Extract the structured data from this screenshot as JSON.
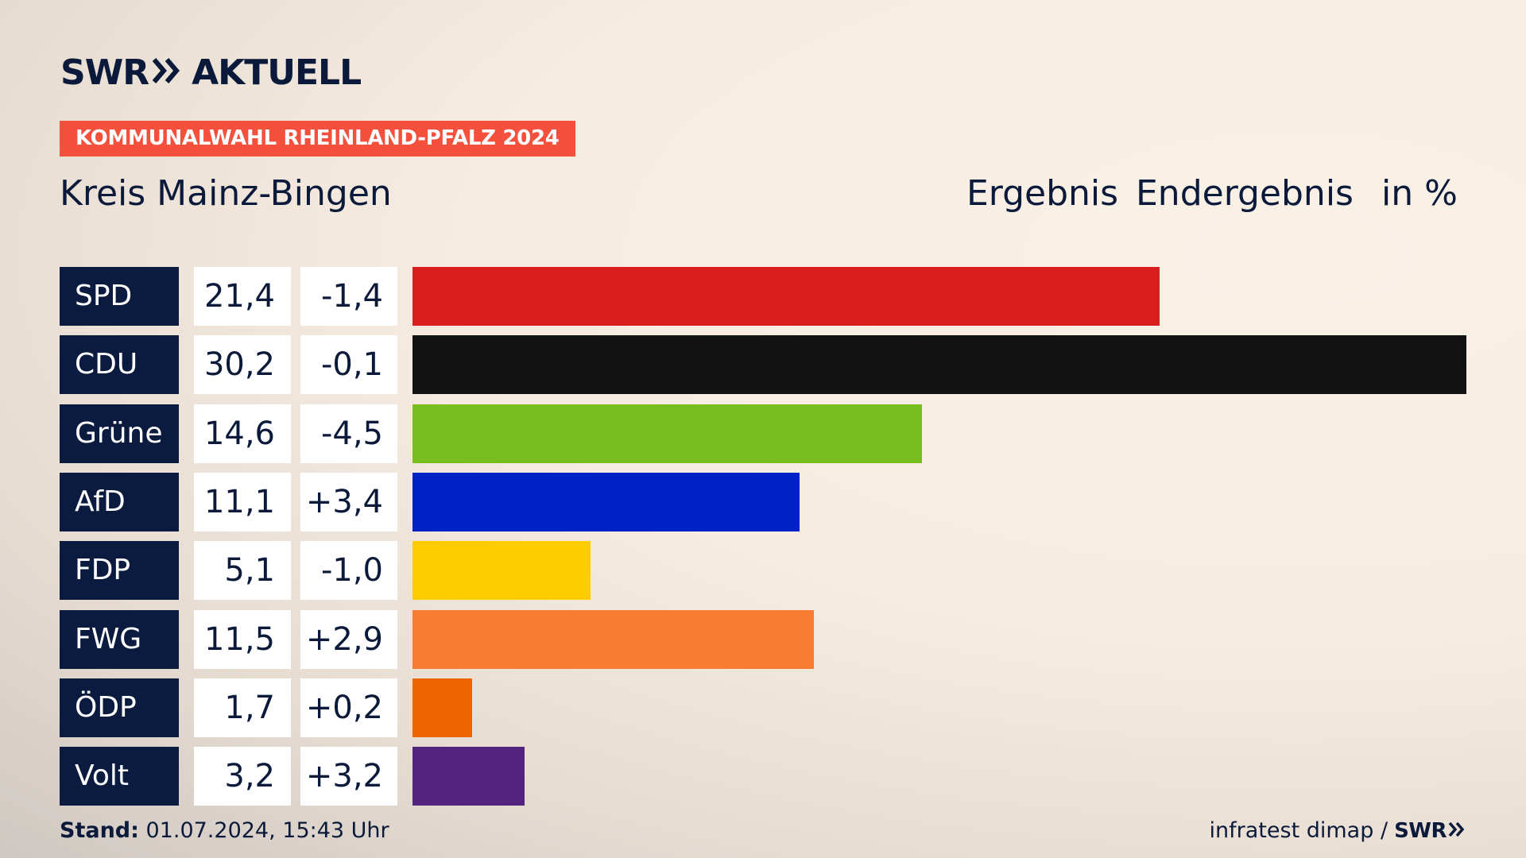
{
  "brand": {
    "logo_left": "SWR",
    "logo_right": "AKTUELL",
    "tagline": "KOMMUNALWAHL RHEINLAND-PFALZ 2024"
  },
  "header": {
    "region": "Kreis Mainz-Bingen",
    "col_ergebnis": "Ergebnis",
    "col_endergebnis": "Endergebnis",
    "col_unit": "in %"
  },
  "chart_data": {
    "type": "bar",
    "title": "Kreis Mainz-Bingen",
    "categories": [
      "SPD",
      "CDU",
      "Grüne",
      "AfD",
      "FDP",
      "FWG",
      "ÖDP",
      "Volt"
    ],
    "values": [
      21.4,
      30.2,
      14.6,
      11.1,
      5.1,
      11.5,
      1.7,
      3.2
    ],
    "value_labels": [
      "21,4",
      "30,2",
      "14,6",
      "11,1",
      "5,1",
      "11,5",
      "1,7",
      "3,2"
    ],
    "changes": [
      "-1,4",
      "-0,1",
      "-4,5",
      "+3,4",
      "-1,0",
      "+2,9",
      "+0,2",
      "+3,2"
    ],
    "colors": [
      "#d81e1e",
      "#121212",
      "#78be1e",
      "#0021c8",
      "#ffcc00",
      "#f77b30",
      "#ec6400",
      "#532380"
    ],
    "xlim": [
      0,
      30.2
    ],
    "orientation": "horizontal",
    "unit": "in %",
    "grid": false,
    "legend": "none"
  },
  "footer": {
    "stand_label": "Stand:",
    "stand_value": "01.07.2024, 15:43 Uhr",
    "source": "infratest dimap /",
    "source_logo": "SWR"
  }
}
